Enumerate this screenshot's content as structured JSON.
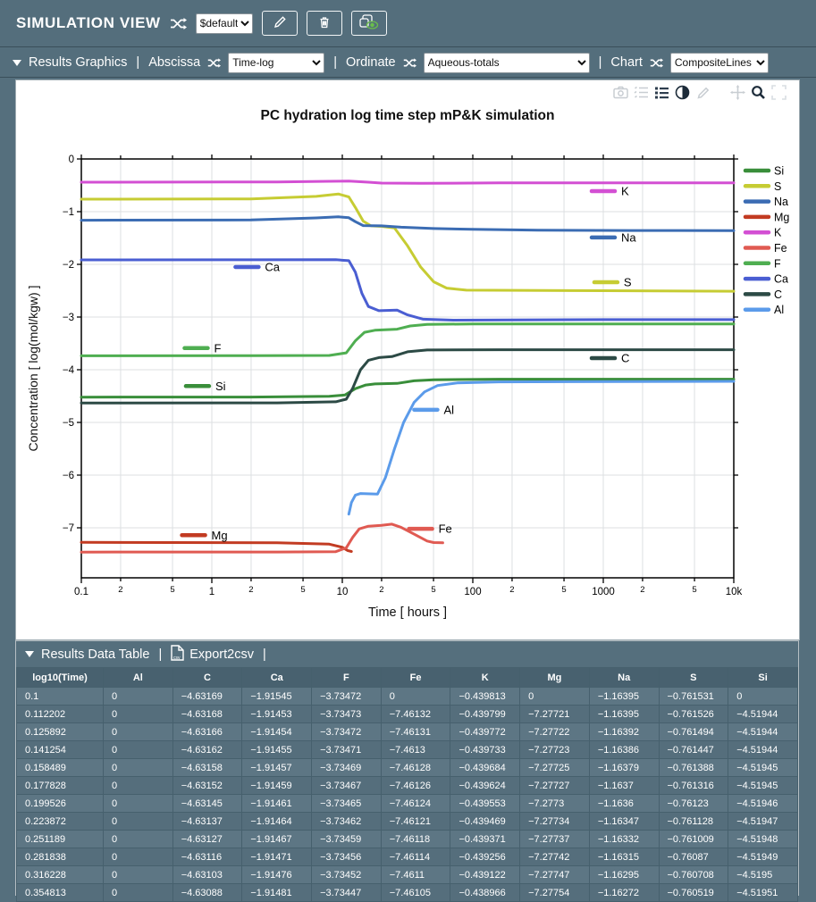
{
  "sep": "|",
  "top_bar": {
    "title": "SIMULATION VIEW",
    "preset_value": "$default"
  },
  "graphics_bar": {
    "section_label": "Results Graphics",
    "abscissa_label": "Abscissa",
    "abscissa_value": "Time-log",
    "ordinate_label": "Ordinate",
    "ordinate_value": "Aqueous-totals",
    "chart_label": "Chart",
    "chart_value": "CompositeLines"
  },
  "chart_toolbar": {
    "icons": [
      "camera",
      "filters",
      "list",
      "contrast",
      "pencil",
      "pan",
      "zoom",
      "fullscreen"
    ]
  },
  "chart_data": {
    "type": "line",
    "title": "PC hydration log time step mP&K simulation",
    "xlabel": "Time [ hours ]",
    "ylabel": "Concentration [ log(mol/kgw) ]",
    "x_scale": "log10",
    "xlim_log10": [
      -1,
      4
    ],
    "ylim": [
      -7.95,
      0
    ],
    "grid": true,
    "legend_position": "right",
    "x_ticks": [
      {
        "p": -1,
        "label": "0.1",
        "major": true
      },
      {
        "p": -0.699,
        "label": "2",
        "major": false
      },
      {
        "p": -0.301,
        "label": "5",
        "major": false
      },
      {
        "p": 0,
        "label": "1",
        "major": true
      },
      {
        "p": 0.301,
        "label": "2",
        "major": false
      },
      {
        "p": 0.699,
        "label": "5",
        "major": false
      },
      {
        "p": 1,
        "label": "10",
        "major": true
      },
      {
        "p": 1.301,
        "label": "2",
        "major": false
      },
      {
        "p": 1.699,
        "label": "5",
        "major": false
      },
      {
        "p": 2,
        "label": "100",
        "major": true
      },
      {
        "p": 2.301,
        "label": "2",
        "major": false
      },
      {
        "p": 2.699,
        "label": "5",
        "major": false
      },
      {
        "p": 3,
        "label": "1000",
        "major": true
      },
      {
        "p": 3.301,
        "label": "2",
        "major": false
      },
      {
        "p": 3.699,
        "label": "5",
        "major": false
      },
      {
        "p": 4,
        "label": "10k",
        "major": true
      }
    ],
    "y_ticks": [
      {
        "v": 0,
        "label": "0"
      },
      {
        "v": -1,
        "label": "−1"
      },
      {
        "v": -2,
        "label": "−2"
      },
      {
        "v": -3,
        "label": "−3"
      },
      {
        "v": -4,
        "label": "−4"
      },
      {
        "v": -5,
        "label": "−5"
      },
      {
        "v": -6,
        "label": "−6"
      },
      {
        "v": -7,
        "label": "−7"
      }
    ],
    "series": [
      {
        "name": "Si",
        "color": "#398e3a",
        "label_at": [
          -0.11,
          -4.31
        ],
        "points": [
          [
            -1,
            -4.52
          ],
          [
            0.3,
            -4.518
          ],
          [
            0.9,
            -4.505
          ],
          [
            1.02,
            -4.48
          ],
          [
            1.1,
            -4.36
          ],
          [
            1.18,
            -4.29
          ],
          [
            1.25,
            -4.27
          ],
          [
            1.42,
            -4.26
          ],
          [
            1.55,
            -4.21
          ],
          [
            1.7,
            -4.19
          ],
          [
            2.2,
            -4.18
          ],
          [
            4,
            -4.18
          ]
        ]
      },
      {
        "name": "S",
        "color": "#c6cc33",
        "label_at": [
          3.02,
          -2.34
        ],
        "points": [
          [
            -1,
            -0.762
          ],
          [
            0.3,
            -0.757
          ],
          [
            0.8,
            -0.71
          ],
          [
            0.97,
            -0.665
          ],
          [
            1.05,
            -0.72
          ],
          [
            1.1,
            -0.92
          ],
          [
            1.16,
            -1.18
          ],
          [
            1.22,
            -1.27
          ],
          [
            1.3,
            -1.28
          ],
          [
            1.4,
            -1.31
          ],
          [
            1.5,
            -1.65
          ],
          [
            1.6,
            -2.05
          ],
          [
            1.7,
            -2.33
          ],
          [
            1.8,
            -2.45
          ],
          [
            1.95,
            -2.49
          ],
          [
            3,
            -2.5
          ],
          [
            4,
            -2.51
          ]
        ]
      },
      {
        "name": "Na",
        "color": "#3b6cb3",
        "label_at": [
          3.0,
          -1.49
        ],
        "points": [
          [
            -1,
            -1.163
          ],
          [
            0.3,
            -1.158
          ],
          [
            0.8,
            -1.118
          ],
          [
            0.97,
            -1.098
          ],
          [
            1.05,
            -1.115
          ],
          [
            1.1,
            -1.19
          ],
          [
            1.16,
            -1.265
          ],
          [
            1.3,
            -1.27
          ],
          [
            1.45,
            -1.295
          ],
          [
            1.7,
            -1.32
          ],
          [
            2,
            -1.335
          ],
          [
            2.5,
            -1.35
          ],
          [
            3.2,
            -1.357
          ],
          [
            4,
            -1.36
          ]
        ]
      },
      {
        "name": "Mg",
        "color": "#c23b22",
        "label_at": [
          -0.14,
          -7.14
        ],
        "points": [
          [
            -1,
            -7.277
          ],
          [
            0.5,
            -7.283
          ],
          [
            0.9,
            -7.31
          ],
          [
            1.0,
            -7.37
          ],
          [
            1.04,
            -7.43
          ],
          [
            1.07,
            -7.45
          ]
        ]
      },
      {
        "name": "K",
        "color": "#d34fd3",
        "label_at": [
          3.0,
          -0.61
        ],
        "points": [
          [
            -1,
            -0.44
          ],
          [
            0.5,
            -0.436
          ],
          [
            0.9,
            -0.424
          ],
          [
            1.05,
            -0.418
          ],
          [
            1.2,
            -0.44
          ],
          [
            1.3,
            -0.458
          ],
          [
            1.6,
            -0.462
          ],
          [
            2.2,
            -0.455
          ],
          [
            3,
            -0.452
          ],
          [
            4,
            -0.452
          ]
        ]
      },
      {
        "name": "Fe",
        "color": "#e05a52",
        "label_at": [
          1.6,
          -7.02
        ],
        "points": [
          [
            -1,
            -7.461
          ],
          [
            0.5,
            -7.459
          ],
          [
            0.95,
            -7.452
          ],
          [
            1.03,
            -7.38
          ],
          [
            1.08,
            -7.18
          ],
          [
            1.13,
            -7.02
          ],
          [
            1.2,
            -6.97
          ],
          [
            1.3,
            -6.955
          ],
          [
            1.38,
            -6.93
          ],
          [
            1.45,
            -6.99
          ],
          [
            1.55,
            -7.12
          ],
          [
            1.65,
            -7.25
          ],
          [
            1.7,
            -7.28
          ],
          [
            1.77,
            -7.285
          ]
        ]
      },
      {
        "name": "F",
        "color": "#4fae51",
        "label_at": [
          -0.12,
          -3.59
        ],
        "points": [
          [
            -1,
            -3.735
          ],
          [
            0.3,
            -3.733
          ],
          [
            0.9,
            -3.728
          ],
          [
            1.03,
            -3.68
          ],
          [
            1.1,
            -3.45
          ],
          [
            1.17,
            -3.29
          ],
          [
            1.25,
            -3.25
          ],
          [
            1.42,
            -3.23
          ],
          [
            1.52,
            -3.17
          ],
          [
            1.65,
            -3.14
          ],
          [
            2,
            -3.13
          ],
          [
            4,
            -3.13
          ]
        ]
      },
      {
        "name": "Ca",
        "color": "#4a5ed2",
        "label_at": [
          0.27,
          -2.05
        ],
        "points": [
          [
            -1,
            -1.915
          ],
          [
            0.3,
            -1.914
          ],
          [
            0.95,
            -1.912
          ],
          [
            1.05,
            -1.93
          ],
          [
            1.1,
            -2.15
          ],
          [
            1.15,
            -2.55
          ],
          [
            1.2,
            -2.8
          ],
          [
            1.28,
            -2.88
          ],
          [
            1.42,
            -2.87
          ],
          [
            1.5,
            -2.96
          ],
          [
            1.62,
            -3.04
          ],
          [
            1.85,
            -3.06
          ],
          [
            3,
            -3.05
          ],
          [
            4,
            -3.05
          ]
        ]
      },
      {
        "name": "C",
        "color": "#2c4a45",
        "label_at": [
          3.0,
          -3.78
        ],
        "points": [
          [
            -1,
            -4.632
          ],
          [
            0.5,
            -4.628
          ],
          [
            0.95,
            -4.608
          ],
          [
            1.03,
            -4.56
          ],
          [
            1.08,
            -4.35
          ],
          [
            1.14,
            -4.0
          ],
          [
            1.2,
            -3.82
          ],
          [
            1.28,
            -3.77
          ],
          [
            1.38,
            -3.75
          ],
          [
            1.5,
            -3.66
          ],
          [
            1.65,
            -3.625
          ],
          [
            2.2,
            -3.62
          ],
          [
            4,
            -3.62
          ]
        ]
      },
      {
        "name": "Al",
        "color": "#5b9bea",
        "label_at": [
          1.64,
          -4.76
        ],
        "points": [
          [
            1.05,
            -6.74
          ],
          [
            1.07,
            -6.52
          ],
          [
            1.1,
            -6.38
          ],
          [
            1.14,
            -6.35
          ],
          [
            1.27,
            -6.36
          ],
          [
            1.33,
            -6.05
          ],
          [
            1.4,
            -5.5
          ],
          [
            1.47,
            -5.0
          ],
          [
            1.55,
            -4.62
          ],
          [
            1.63,
            -4.42
          ],
          [
            1.73,
            -4.3
          ],
          [
            1.88,
            -4.25
          ],
          [
            2.2,
            -4.23
          ],
          [
            4,
            -4.22
          ]
        ]
      }
    ]
  },
  "table": {
    "section_label": "Results Data Table",
    "export_label": "Export2csv",
    "columns": [
      "log10(Time)",
      "Al",
      "C",
      "Ca",
      "F",
      "Fe",
      "K",
      "Mg",
      "Na",
      "S",
      "Si"
    ],
    "rows": [
      [
        "0.1",
        "0",
        "−4.63169",
        "−1.91545",
        "−3.73472",
        "0",
        "−0.439813",
        "0",
        "−1.16395",
        "−0.761531",
        "0"
      ],
      [
        "0.112202",
        "0",
        "−4.63168",
        "−1.91453",
        "−3.73473",
        "−7.46132",
        "−0.439799",
        "−7.27721",
        "−1.16395",
        "−0.761526",
        "−4.51944"
      ],
      [
        "0.125892",
        "0",
        "−4.63166",
        "−1.91454",
        "−3.73472",
        "−7.46131",
        "−0.439772",
        "−7.27722",
        "−1.16392",
        "−0.761494",
        "−4.51944"
      ],
      [
        "0.141254",
        "0",
        "−4.63162",
        "−1.91455",
        "−3.73471",
        "−7.4613",
        "−0.439733",
        "−7.27723",
        "−1.16386",
        "−0.761447",
        "−4.51944"
      ],
      [
        "0.158489",
        "0",
        "−4.63158",
        "−1.91457",
        "−3.73469",
        "−7.46128",
        "−0.439684",
        "−7.27725",
        "−1.16379",
        "−0.761388",
        "−4.51945"
      ],
      [
        "0.177828",
        "0",
        "−4.63152",
        "−1.91459",
        "−3.73467",
        "−7.46126",
        "−0.439624",
        "−7.27727",
        "−1.1637",
        "−0.761316",
        "−4.51945"
      ],
      [
        "0.199526",
        "0",
        "−4.63145",
        "−1.91461",
        "−3.73465",
        "−7.46124",
        "−0.439553",
        "−7.2773",
        "−1.1636",
        "−0.76123",
        "−4.51946"
      ],
      [
        "0.223872",
        "0",
        "−4.63137",
        "−1.91464",
        "−3.73462",
        "−7.46121",
        "−0.439469",
        "−7.27734",
        "−1.16347",
        "−0.761128",
        "−4.51947"
      ],
      [
        "0.251189",
        "0",
        "−4.63127",
        "−1.91467",
        "−3.73459",
        "−7.46118",
        "−0.439371",
        "−7.27737",
        "−1.16332",
        "−0.761009",
        "−4.51948"
      ],
      [
        "0.281838",
        "0",
        "−4.63116",
        "−1.91471",
        "−3.73456",
        "−7.46114",
        "−0.439256",
        "−7.27742",
        "−1.16315",
        "−0.76087",
        "−4.51949"
      ],
      [
        "0.316228",
        "0",
        "−4.63103",
        "−1.91476",
        "−3.73452",
        "−7.4611",
        "−0.439122",
        "−7.27747",
        "−1.16295",
        "−0.760708",
        "−4.5195"
      ],
      [
        "0.354813",
        "0",
        "−4.63088",
        "−1.91481",
        "−3.73447",
        "−7.46105",
        "−0.438966",
        "−7.27754",
        "−1.16272",
        "−0.760519",
        "−4.51951"
      ]
    ]
  }
}
